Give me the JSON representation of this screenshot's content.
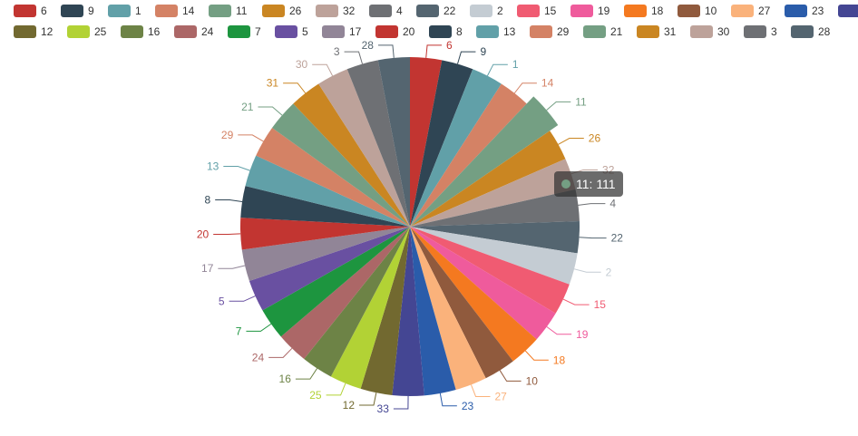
{
  "chart_data": {
    "type": "pie",
    "title": "",
    "legend_position": "top",
    "slices": [
      {
        "name": "6",
        "value": 100,
        "color": "#c23531"
      },
      {
        "name": "9",
        "value": 100,
        "color": "#2f4554"
      },
      {
        "name": "1",
        "value": 100,
        "color": "#61a0a8"
      },
      {
        "name": "14",
        "value": 100,
        "color": "#d48265"
      },
      {
        "name": "11",
        "value": 111,
        "color": "#749f83",
        "emphasis": true
      },
      {
        "name": "26",
        "value": 100,
        "color": "#ca8622"
      },
      {
        "name": "32",
        "value": 100,
        "color": "#bda29a"
      },
      {
        "name": "4",
        "value": 100,
        "color": "#6e7074"
      },
      {
        "name": "22",
        "value": 100,
        "color": "#546570"
      },
      {
        "name": "2",
        "value": 100,
        "color": "#c4ccd3"
      },
      {
        "name": "15",
        "value": 100,
        "color": "#f05b72"
      },
      {
        "name": "19",
        "value": 100,
        "color": "#ef5b9c"
      },
      {
        "name": "18",
        "value": 100,
        "color": "#f47920"
      },
      {
        "name": "10",
        "value": 100,
        "color": "#905a3d"
      },
      {
        "name": "27",
        "value": 100,
        "color": "#fab27b"
      },
      {
        "name": "23",
        "value": 100,
        "color": "#2a5caa"
      },
      {
        "name": "33",
        "value": 100,
        "color": "#444693"
      },
      {
        "name": "12",
        "value": 100,
        "color": "#726930"
      },
      {
        "name": "25",
        "value": 100,
        "color": "#b2d235"
      },
      {
        "name": "16",
        "value": 100,
        "color": "#6d8346"
      },
      {
        "name": "24",
        "value": 100,
        "color": "#ac6767"
      },
      {
        "name": "7",
        "value": 100,
        "color": "#1d953f"
      },
      {
        "name": "5",
        "value": 100,
        "color": "#6950a1"
      },
      {
        "name": "17",
        "value": 100,
        "color": "#918597"
      },
      {
        "name": "20",
        "value": 100,
        "color": "#c23531"
      },
      {
        "name": "8",
        "value": 100,
        "color": "#2f4554"
      },
      {
        "name": "13",
        "value": 100,
        "color": "#61a0a8"
      },
      {
        "name": "29",
        "value": 100,
        "color": "#d48265"
      },
      {
        "name": "21",
        "value": 100,
        "color": "#749f83"
      },
      {
        "name": "31",
        "value": 100,
        "color": "#ca8622"
      },
      {
        "name": "30",
        "value": 100,
        "color": "#bda29a"
      },
      {
        "name": "3",
        "value": 100,
        "color": "#6e7074"
      },
      {
        "name": "28",
        "value": 100,
        "color": "#546570"
      }
    ],
    "tooltip": {
      "text": "11: 111",
      "color": "#749f83"
    }
  }
}
